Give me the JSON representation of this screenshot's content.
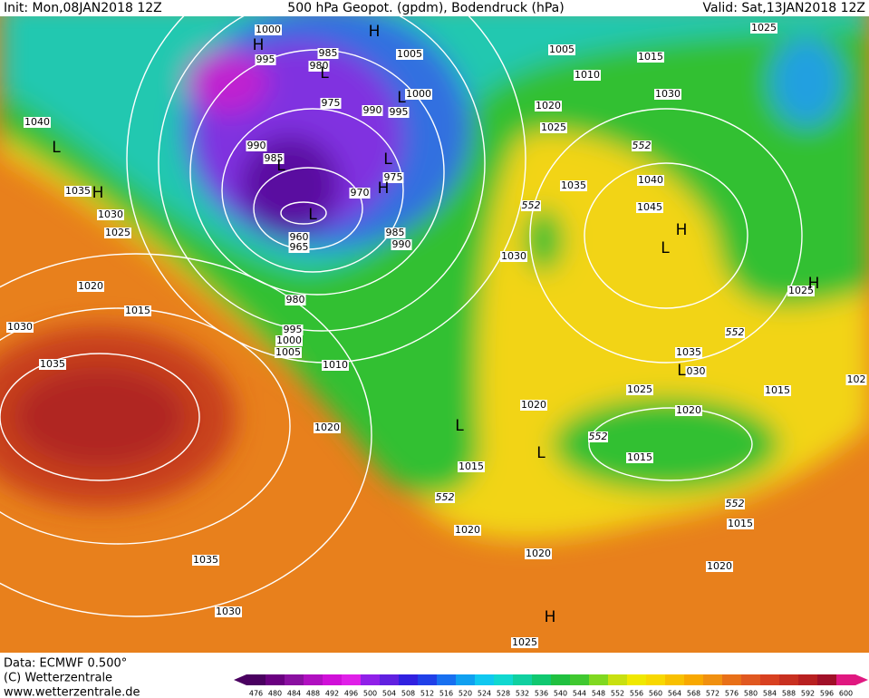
{
  "header": {
    "init": "Init: Mon,08JAN2018 12Z",
    "title": "500 hPa Geopot. (gpdm), Bodendruck (hPa)",
    "valid": "Valid: Sat,13JAN2018 12Z"
  },
  "footer": {
    "data": "Data: ECMWF  0.500°",
    "copyright": "(C) Wetterzentrale",
    "url": "www.wetterzentrale.de"
  },
  "colorbar": {
    "levels": [
      476,
      480,
      484,
      488,
      492,
      496,
      500,
      504,
      508,
      512,
      516,
      520,
      524,
      528,
      532,
      536,
      540,
      544,
      548,
      552,
      556,
      560,
      564,
      568,
      572,
      576,
      580,
      584,
      588,
      592,
      596,
      600
    ],
    "colors": [
      "#4a0060",
      "#6a0080",
      "#8a10a0",
      "#b010c0",
      "#d010d8",
      "#e020e8",
      "#9020e8",
      "#6020e0",
      "#3020e0",
      "#2040e8",
      "#1870f0",
      "#10a0f0",
      "#10c8f0",
      "#10d8d0",
      "#10d0a0",
      "#10c870",
      "#20c040",
      "#40c830",
      "#80d820",
      "#c8e010",
      "#f0e800",
      "#f8d800",
      "#f8c000",
      "#f8a800",
      "#f09010",
      "#e87018",
      "#e05820",
      "#d84020",
      "#c83020",
      "#b82020",
      "#a01028",
      "#e01880"
    ]
  },
  "isobar_labels": [
    "1000",
    "995",
    "985",
    "980",
    "1005",
    "1000",
    "975",
    "990",
    "995",
    "990",
    "985",
    "975",
    "970",
    "960",
    "965",
    "985",
    "990",
    "980",
    "995",
    "1000",
    "1005",
    "1010",
    "1020",
    "1040",
    "1035",
    "1030",
    "1025",
    "1020",
    "1015",
    "1030",
    "1035",
    "1035",
    "1030",
    "1005",
    "1010",
    "1015",
    "1030",
    "1025",
    "1020",
    "1025",
    "1035",
    "1040",
    "1045",
    "1030",
    "1025",
    "1035",
    "030",
    "1025",
    "1020",
    "1020",
    "1015",
    "1015",
    "1015",
    "1015",
    "1020",
    "1020",
    "1020",
    "1025",
    "102"
  ],
  "height_labels": [
    "552",
    "552",
    "552",
    "552",
    "552",
    "552"
  ],
  "centers": [
    "H",
    "H",
    "L",
    "L",
    "L",
    "H",
    "L",
    "L",
    "H",
    "L",
    "H",
    "L",
    "H",
    "L",
    "L",
    "L",
    "H"
  ]
}
